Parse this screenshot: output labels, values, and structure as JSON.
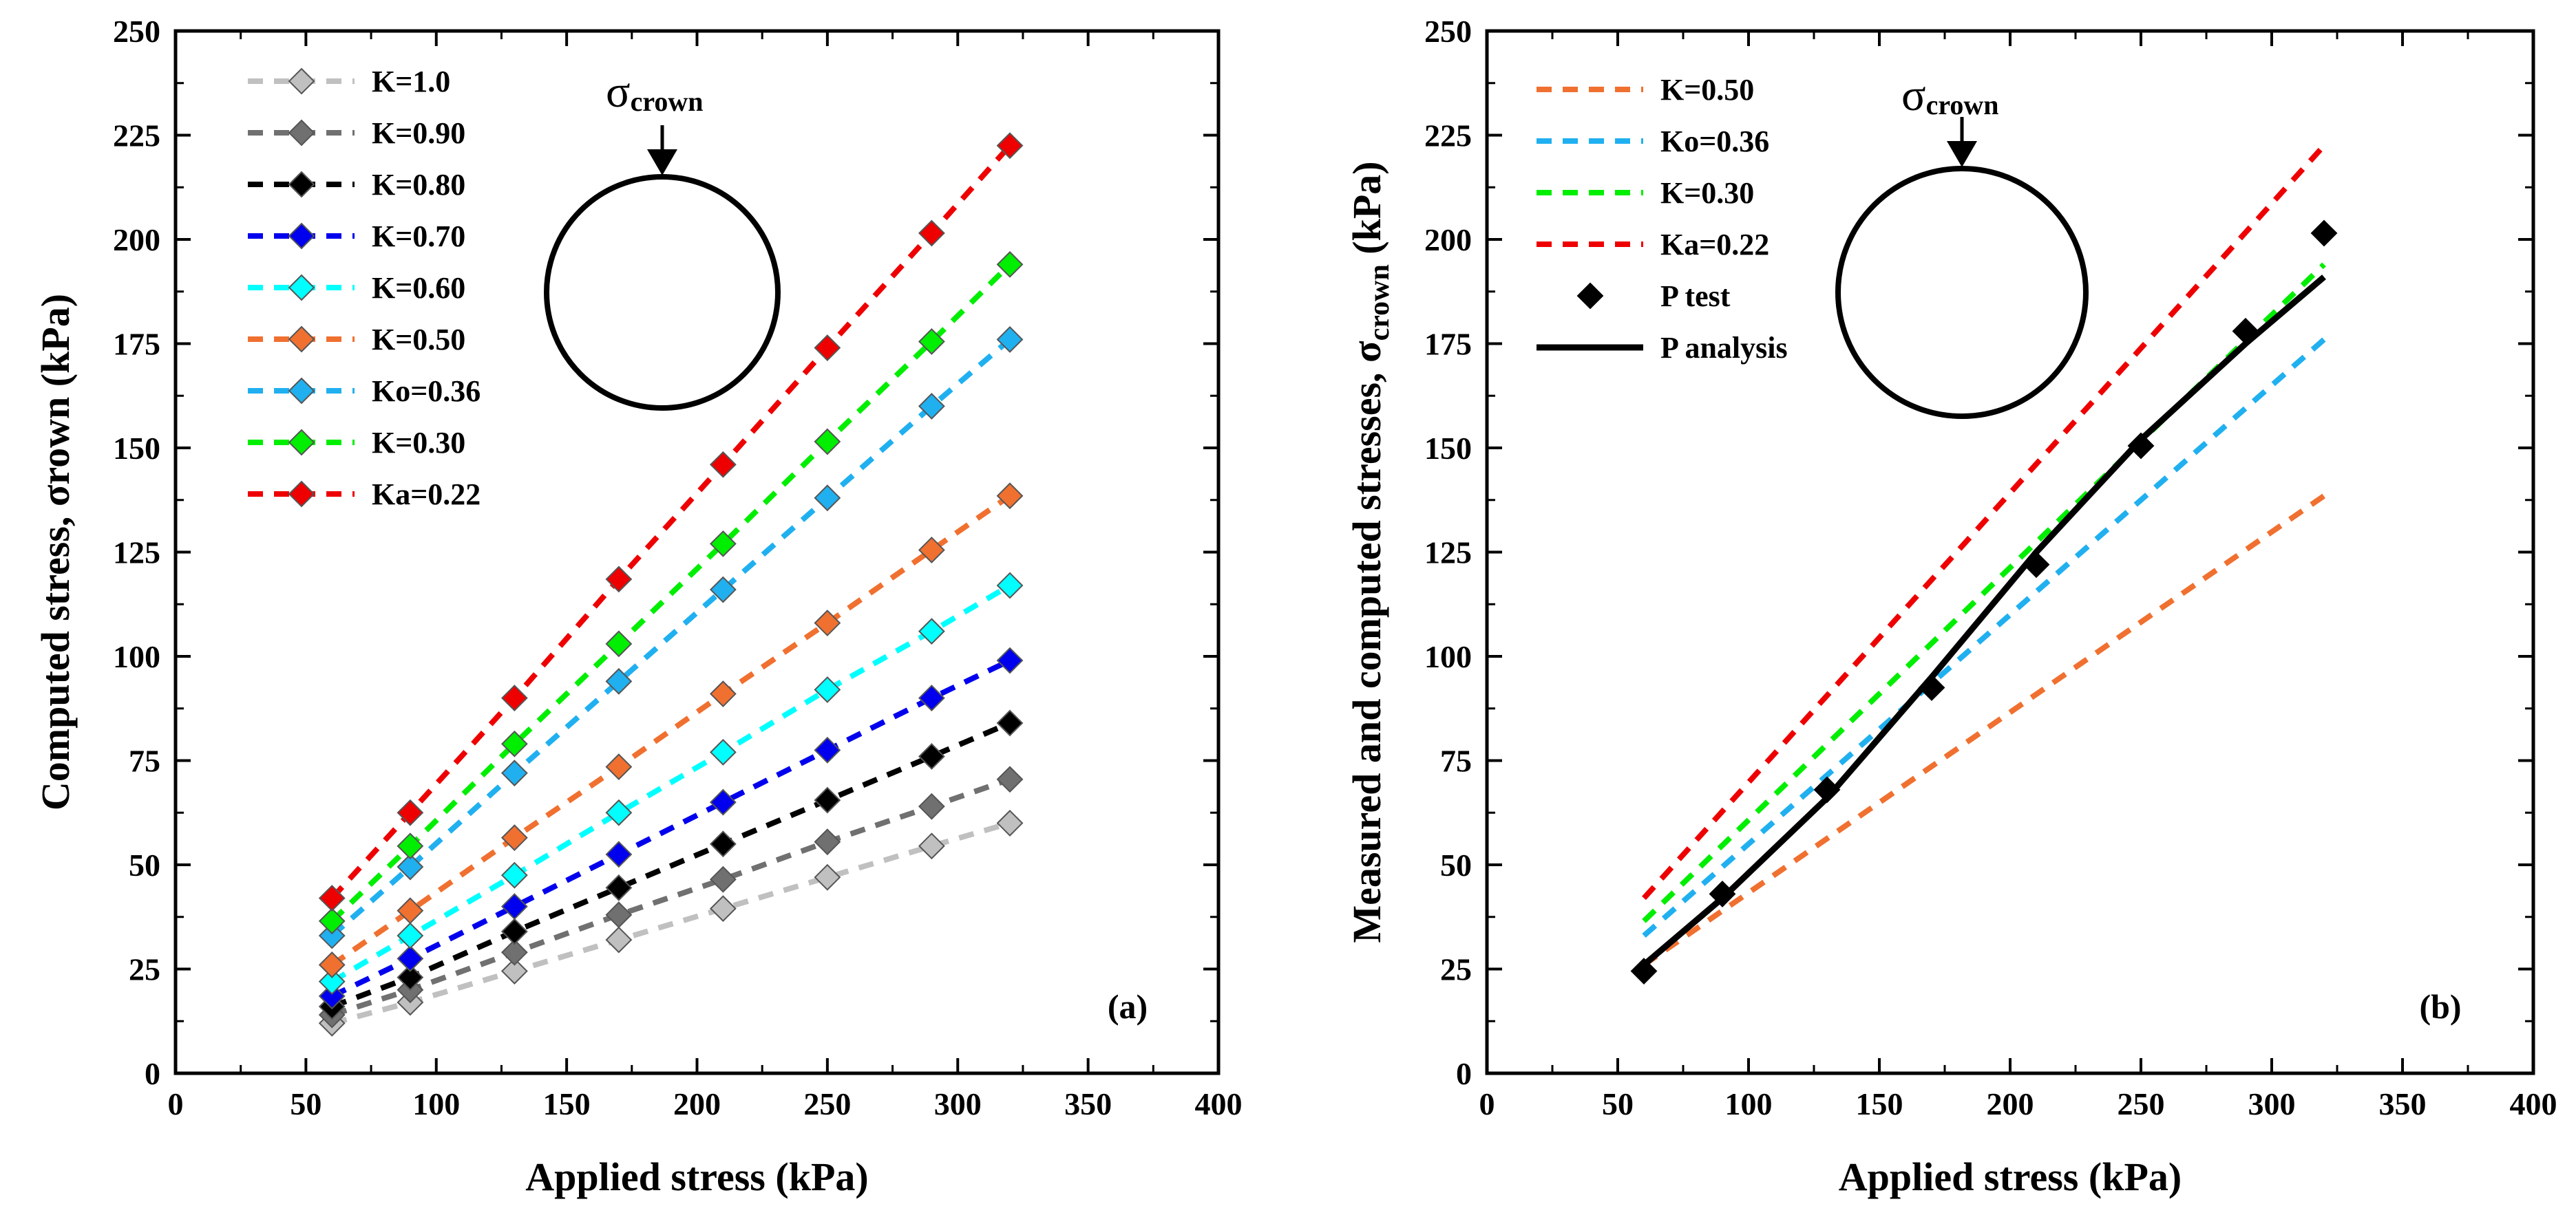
{
  "charts": [
    {
      "panel_label": "(a)",
      "xlabel": "Applied stress (kPa)",
      "ylabel": "Computed stress, σrown (kPa)",
      "inset_label": "σ",
      "inset_subscript": "crown",
      "x_ticks": [
        "0",
        "50",
        "100",
        "150",
        "200",
        "250",
        "300",
        "350",
        "400"
      ],
      "y_ticks": [
        "0",
        "25",
        "50",
        "75",
        "100",
        "125",
        "150",
        "175",
        "200",
        "225",
        "250"
      ]
    },
    {
      "panel_label": "(b)",
      "xlabel": "Applied stress (kPa)",
      "ylabel_main": "Measured and computed stresses, σ",
      "ylabel_sub": "crown",
      "ylabel_unit": " (kPa)",
      "inset_label": "σ",
      "inset_subscript": "crown",
      "x_ticks": [
        "0",
        "50",
        "100",
        "150",
        "200",
        "250",
        "300",
        "350",
        "400"
      ],
      "y_ticks": [
        "0",
        "25",
        "50",
        "75",
        "100",
        "125",
        "150",
        "175",
        "200",
        "225",
        "250"
      ]
    }
  ],
  "chart_data": [
    {
      "type": "line",
      "xlim": [
        0,
        400
      ],
      "ylim": [
        0,
        250
      ],
      "legend_position": "top-left",
      "x": [
        60,
        90,
        130,
        170,
        210,
        250,
        290,
        320
      ],
      "series": [
        {
          "name": "K=1.0",
          "color": "#c0c0c0",
          "values": [
            12,
            17,
            24.5,
            32,
            39.5,
            47,
            54.5,
            60
          ]
        },
        {
          "name": "K=0.90",
          "color": "#707070",
          "values": [
            14,
            20,
            29,
            38,
            46.5,
            55.5,
            64,
            70.5
          ]
        },
        {
          "name": "K=0.80",
          "color": "#000000",
          "values": [
            16,
            23,
            34,
            44.5,
            55,
            65.5,
            76,
            84
          ]
        },
        {
          "name": "K=0.70",
          "color": "#0000ee",
          "values": [
            18.5,
            27.5,
            40,
            52.5,
            65,
            77.5,
            90,
            99
          ]
        },
        {
          "name": "K=0.60",
          "color": "#00ffff",
          "values": [
            22,
            33,
            47.5,
            62.5,
            77,
            92,
            106,
            117
          ]
        },
        {
          "name": "K=0.50",
          "color": "#f07030",
          "values": [
            26,
            39,
            56.5,
            73.5,
            91,
            108,
            125.5,
            138.5
          ]
        },
        {
          "name": "Ko=0.36",
          "color": "#20b0f0",
          "values": [
            33,
            49.5,
            72,
            94,
            116,
            138,
            160,
            176
          ]
        },
        {
          "name": "K=0.30",
          "color": "#00ee00",
          "values": [
            36.5,
            54.5,
            79,
            103,
            127,
            151.5,
            175.5,
            194
          ]
        },
        {
          "name": "Ka=0.22",
          "color": "#ee0000",
          "values": [
            42,
            62.5,
            90,
            118.5,
            146,
            174,
            201.5,
            222.5
          ]
        }
      ]
    },
    {
      "type": "line",
      "xlim": [
        0,
        400
      ],
      "ylim": [
        0,
        250
      ],
      "legend_position": "top-left",
      "series": [
        {
          "name": "K=0.50",
          "color": "#f07030",
          "style": "dashed",
          "x": [
            60,
            320
          ],
          "values": [
            26,
            138.5
          ]
        },
        {
          "name": "Ko=0.36",
          "color": "#20b0f0",
          "style": "dashed",
          "x": [
            60,
            320
          ],
          "values": [
            33,
            176
          ]
        },
        {
          "name": "K=0.30",
          "color": "#00ee00",
          "style": "dashed",
          "x": [
            60,
            320
          ],
          "values": [
            36.5,
            194
          ]
        },
        {
          "name": "Ka=0.22",
          "color": "#ee0000",
          "style": "dashed",
          "x": [
            60,
            320
          ],
          "values": [
            42,
            222.5
          ]
        },
        {
          "name": "P test",
          "color": "#000000",
          "style": "markers",
          "x": [
            60,
            90,
            130,
            170,
            210,
            250,
            290,
            320
          ],
          "values": [
            24.5,
            43,
            68,
            92.5,
            122,
            150.5,
            178,
            201.5
          ]
        },
        {
          "name": "P analysis",
          "color": "#000000",
          "style": "solid",
          "x": [
            60,
            90,
            130,
            170,
            210,
            250,
            290,
            320
          ],
          "values": [
            26,
            42,
            66,
            95,
            125,
            152,
            175,
            191
          ]
        }
      ]
    }
  ]
}
